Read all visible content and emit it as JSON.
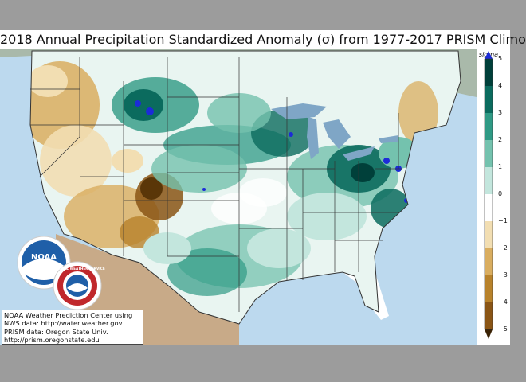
{
  "title": "2018 Annual Precipitation Standardized Anomaly (σ) from 1977-2017 PRISM Climo",
  "colorbar": {
    "title": "sigma",
    "ticks": [
      "5",
      "4",
      "3",
      "2",
      "1",
      "0",
      "−1",
      "−2",
      "−3",
      "−4",
      "−5"
    ],
    "colors": {
      "wet_extreme": "#1c2bd8",
      "wet_5": "#00403a",
      "wet_4": "#0b6b5e",
      "wet_3": "#2f9a85",
      "wet_2": "#74c2ae",
      "wet_1": "#c3e6dd",
      "near_normal": "#ffffff",
      "dry_1": "#f2deb2",
      "dry_2": "#d9ad5f",
      "dry_3": "#b8822b",
      "dry_4": "#8a5515",
      "dry_5": "#5a3608",
      "dry_extreme": "#3a2205"
    }
  },
  "credit": {
    "line1": "NOAA Weather Prediction Center using",
    "line2": "NWS data: http://water.weather.gov",
    "line3": "PRISM data: Oregon State Univ.",
    "line4": "http://prism.oregonstate.edu"
  },
  "logos": {
    "noaa_text": "NOAA",
    "nws_text": "NATIONAL WEATHER SERVICE"
  },
  "map_colors": {
    "ocean": "#bcd9ee",
    "canada_land": "#a9b9aa",
    "mexico_land": "#c8aa88",
    "lakes": "#7fa6c6"
  }
}
